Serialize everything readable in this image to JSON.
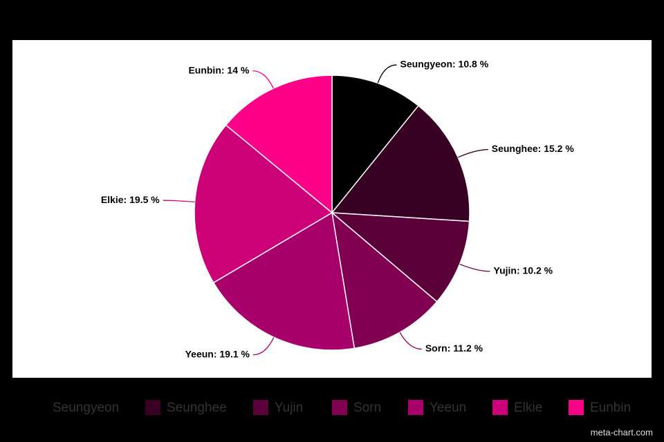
{
  "chart_data": {
    "type": "pie",
    "categories": [
      "Seungyeon",
      "Seunghee",
      "Yujin",
      "Sorn",
      "Yeeun",
      "Elkie",
      "Eunbin"
    ],
    "values": [
      10.8,
      15.2,
      10.2,
      11.2,
      19.1,
      19.5,
      14
    ],
    "value_labels": [
      "Seungyeon: 10.8 %",
      "Seunghee: 15.2 %",
      "Yujin: 10.2 %",
      "Sorn: 11.2 %",
      "Yeeun: 19.1 %",
      "Elkie: 19.5 %",
      "Eunbin: 14 %"
    ],
    "colors": [
      "#000000",
      "#380022",
      "#5c003a",
      "#820052",
      "#a8006a",
      "#cc0077",
      "#ff0088"
    ],
    "legend": "bottom",
    "watermark": "meta-chart.com"
  }
}
